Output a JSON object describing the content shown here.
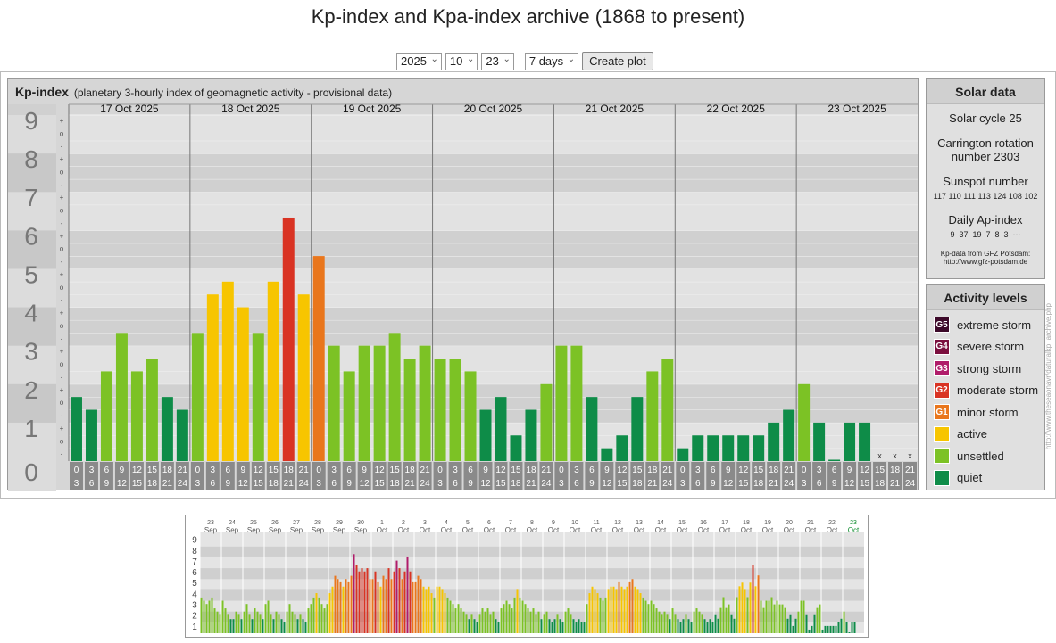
{
  "page": {
    "title": "Kp-index and Kpa-index archive (1868 to present)"
  },
  "controls": {
    "year": "2025",
    "month": "10",
    "day": "23",
    "range": "7 days",
    "button": "Create plot"
  },
  "panel": {
    "heading": "Kp-index",
    "subheading": "(planetary 3-hourly index of geomagnetic activity - provisional data)"
  },
  "solar": {
    "heading": "Solar data",
    "cycle": "Solar cycle 25",
    "carrington1": "Carrington rotation",
    "carrington2": "number 2303",
    "sunspot_label": "Sunspot number",
    "sunspot_values": "117 110 111 113 124 108 102",
    "ap_label": "Daily Ap-index",
    "ap_values": "9  37  19  7  8  3  ---",
    "source1": "Kp-data from GFZ Potsdam:",
    "source2": "http://www.gfz-potsdam.de"
  },
  "activity": {
    "heading": "Activity levels",
    "levels": [
      {
        "code": "G5",
        "label": "extreme storm",
        "color": "#3d0a2a"
      },
      {
        "code": "G4",
        "label": "severe storm",
        "color": "#7b0f3e"
      },
      {
        "code": "G3",
        "label": "strong storm",
        "color": "#b01c6a"
      },
      {
        "code": "G2",
        "label": "moderate storm",
        "color": "#d93323"
      },
      {
        "code": "G1",
        "label": "minor storm",
        "color": "#e9761c"
      },
      {
        "code": "",
        "label": "active",
        "color": "#f7c500"
      },
      {
        "code": "",
        "label": "unsettled",
        "color": "#7cc225"
      },
      {
        "code": "",
        "label": "quiet",
        "color": "#0e8c48"
      }
    ]
  },
  "credit": "http://www.theseaonavr/daturalkp_archive.php",
  "chart_data": {
    "type": "bar",
    "title": "Kp-index",
    "ylim": [
      0,
      9
    ],
    "y_ticks": [
      "0",
      "1",
      "2",
      "3",
      "4",
      "5",
      "6",
      "7",
      "8",
      "9"
    ],
    "sub_ticks": [
      "-",
      "o",
      "+"
    ],
    "days": [
      "17 Oct 2025",
      "18 Oct 2025",
      "19 Oct 2025",
      "20 Oct 2025",
      "21 Oct 2025",
      "22 Oct 2025",
      "23 Oct 2025"
    ],
    "intervals_top": [
      "0",
      "3",
      "6",
      "9",
      "12",
      "15",
      "18",
      "21"
    ],
    "intervals_bottom": [
      "3",
      "6",
      "9",
      "12",
      "15",
      "18",
      "21",
      "24"
    ],
    "missing_marker": "x",
    "values": [
      1.667,
      1.333,
      2.333,
      3.333,
      2.333,
      2.667,
      1.667,
      1.333,
      3.333,
      4.333,
      4.667,
      4.0,
      3.333,
      4.667,
      6.333,
      4.333,
      5.333,
      3.0,
      2.333,
      3.0,
      3.0,
      3.333,
      2.667,
      3.0,
      2.667,
      2.667,
      2.333,
      1.333,
      1.667,
      0.667,
      1.333,
      2.0,
      3.0,
      3.0,
      1.667,
      0.333,
      0.667,
      1.667,
      2.333,
      2.667,
      0.333,
      0.667,
      0.667,
      0.667,
      0.667,
      0.667,
      1.0,
      1.333,
      2.0,
      1.0,
      0.0,
      1.0,
      1.0,
      null,
      null,
      null
    ]
  },
  "overview": {
    "dates": [
      [
        "23",
        "Sep"
      ],
      [
        "24",
        "Sep"
      ],
      [
        "25",
        "Sep"
      ],
      [
        "26",
        "Sep"
      ],
      [
        "27",
        "Sep"
      ],
      [
        "28",
        "Sep"
      ],
      [
        "29",
        "Sep"
      ],
      [
        "30",
        "Sep"
      ],
      [
        "1",
        "Oct"
      ],
      [
        "2",
        "Oct"
      ],
      [
        "3",
        "Oct"
      ],
      [
        "4",
        "Oct"
      ],
      [
        "5",
        "Oct"
      ],
      [
        "6",
        "Oct"
      ],
      [
        "7",
        "Oct"
      ],
      [
        "8",
        "Oct"
      ],
      [
        "9",
        "Oct"
      ],
      [
        "10",
        "Oct"
      ],
      [
        "11",
        "Oct"
      ],
      [
        "12",
        "Oct"
      ],
      [
        "13",
        "Oct"
      ],
      [
        "14",
        "Oct"
      ],
      [
        "15",
        "Oct"
      ],
      [
        "16",
        "Oct"
      ],
      [
        "17",
        "Oct"
      ],
      [
        "18",
        "Oct"
      ],
      [
        "19",
        "Oct"
      ],
      [
        "20",
        "Oct"
      ],
      [
        "21",
        "Oct"
      ],
      [
        "22",
        "Oct"
      ],
      [
        "23",
        "Oct"
      ]
    ],
    "y_ticks": [
      "1",
      "2",
      "3",
      "4",
      "5",
      "6",
      "7",
      "8",
      "9"
    ]
  }
}
